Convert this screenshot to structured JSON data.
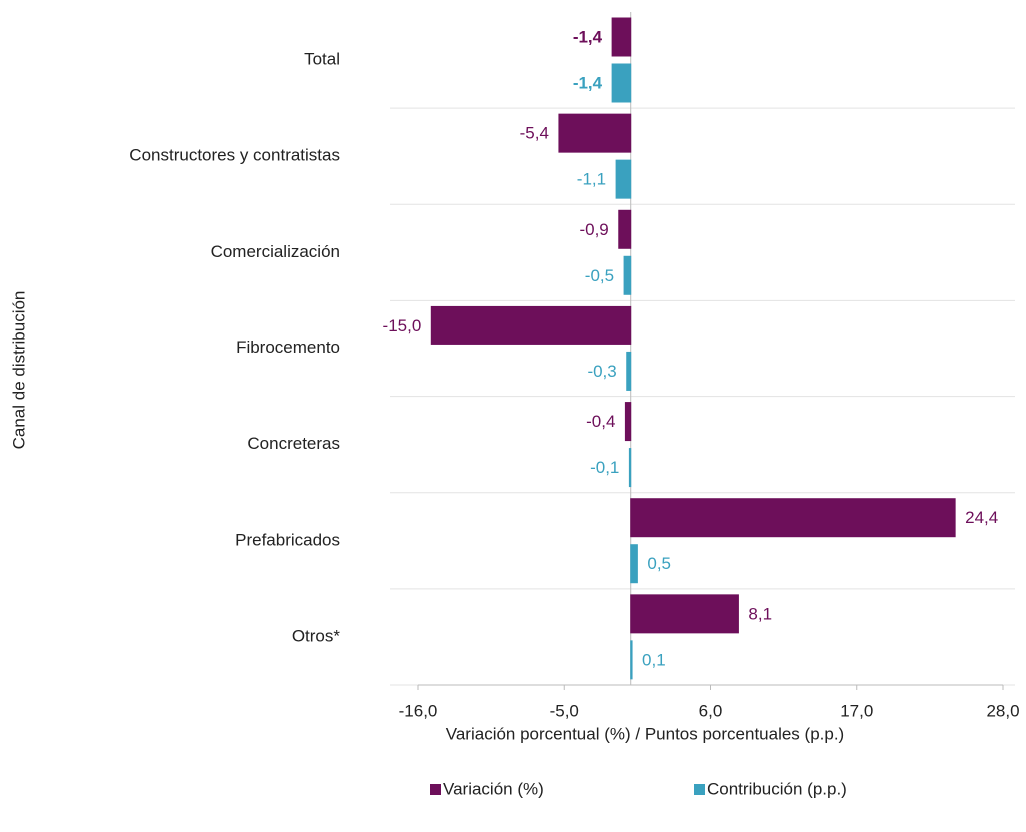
{
  "chart_data": {
    "type": "bar",
    "orientation": "horizontal",
    "x_label": "Variación porcentual (%) / Puntos porcentuales (p.p.)",
    "y_label": "Canal de distribución",
    "categories": [
      "Total",
      "Constructores y contratistas",
      "Comercialización",
      "Fibrocemento",
      "Concreteras",
      "Prefabricados",
      "Otros*"
    ],
    "series": [
      {
        "name": "Variación (%)",
        "color": "#6d0f5a",
        "values": [
          -1.4,
          -5.4,
          -0.9,
          -15.0,
          -0.4,
          24.4,
          8.1
        ],
        "value_labels": [
          "-1,4",
          "-5,4",
          "-0,9",
          "-15,0",
          "-0,4",
          "24,4",
          "8,1"
        ]
      },
      {
        "name": "Contribución (p.p.)",
        "color": "#3aa1bf",
        "values": [
          -1.4,
          -1.1,
          -0.5,
          -0.3,
          -0.1,
          0.5,
          0.1
        ],
        "value_labels": [
          "-1,4",
          "-1,1",
          "-0,5",
          "-0,3",
          "-0,1",
          "0,5",
          "0,1"
        ]
      }
    ],
    "xlim": [
      -16,
      28
    ],
    "xticks": [
      {
        "value": -16,
        "label": "-16,0"
      },
      {
        "value": -5,
        "label": "-5,0"
      },
      {
        "value": 6,
        "label": "6,0"
      },
      {
        "value": 17,
        "label": "17,0"
      },
      {
        "value": 28,
        "label": "28,0"
      }
    ],
    "grid": true,
    "legend": "bottom"
  }
}
